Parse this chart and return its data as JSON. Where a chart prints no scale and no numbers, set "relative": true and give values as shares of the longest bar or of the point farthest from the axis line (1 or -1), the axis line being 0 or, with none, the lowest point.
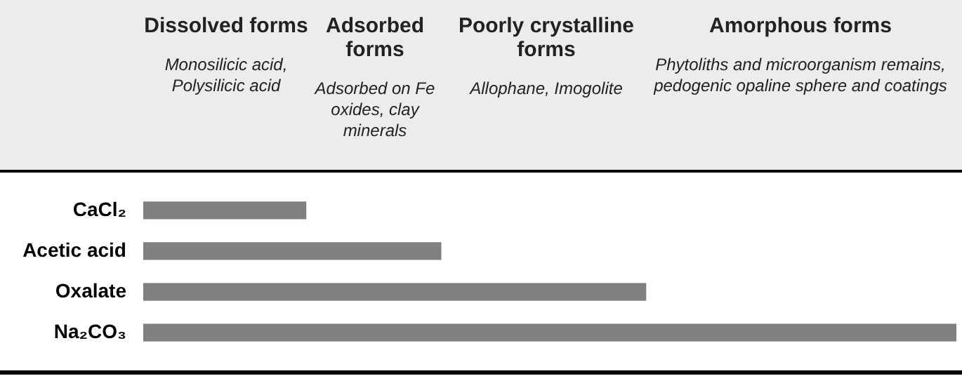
{
  "chart_data": {
    "type": "bar",
    "orientation": "horizontal",
    "relative": true,
    "categories": [
      "CaCl₂",
      "Acetic acid",
      "Oxalate",
      "Na₂CO₃"
    ],
    "values": [
      0.2,
      0.366,
      0.618,
      1
    ],
    "color": "#808080",
    "grid": false,
    "legend": false,
    "annotations": [
      "Dissolved forms",
      "Monosilicic acid, Polysilicic acid",
      "Adsorbed forms",
      "Adsorbed on Fe oxides, clay minerals",
      "Poorly crystalline forms",
      "Allophane, Imogolite",
      "Amorphous forms",
      "Phytoliths and microorganism remains, pedogenic opaline sphere and coatings"
    ]
  }
}
